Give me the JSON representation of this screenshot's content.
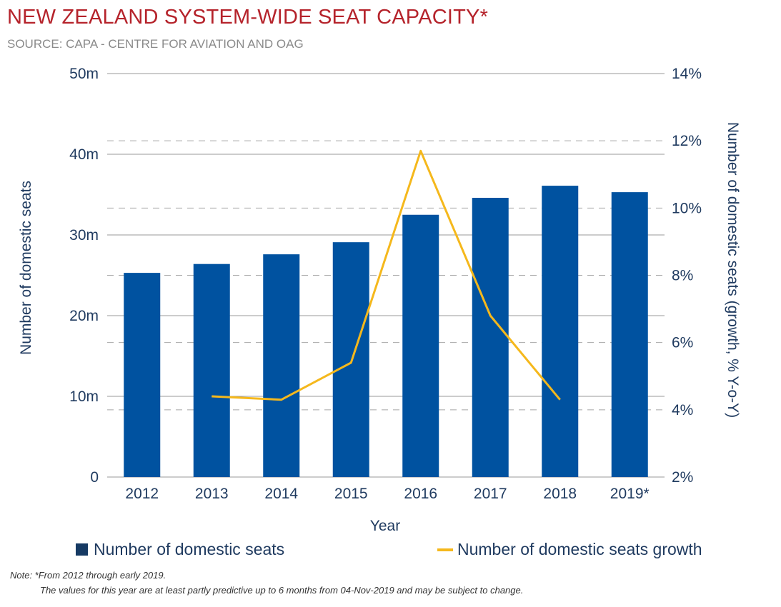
{
  "title": "NEW ZEALAND SYSTEM-WIDE SEAT CAPACITY*",
  "subtitle": "SOURCE: CAPA - CENTRE FOR AVIATION AND OAG",
  "colors": {
    "bar": "#0052a0",
    "line": "#f5b81c",
    "title": "#b5232b",
    "axis_text": "#1f3a5f"
  },
  "chart_data": {
    "type": "bar",
    "categories": [
      "2012",
      "2013",
      "2014",
      "2015",
      "2016",
      "2017",
      "2018",
      "2019*"
    ],
    "xlabel": "Year",
    "ylabel": "Number of domestic seats",
    "y2label": "Number of domestic seats (growth, % Y-o-Y)",
    "ylim": [
      0,
      50
    ],
    "y2lim": [
      2,
      14
    ],
    "yticks": [
      "0",
      "10m",
      "20m",
      "30m",
      "40m",
      "50m"
    ],
    "y2ticks": [
      "2%",
      "4%",
      "6%",
      "8%",
      "10%",
      "12%",
      "14%"
    ],
    "series": [
      {
        "name": "Number of domestic seats",
        "type": "bar",
        "axis": "left",
        "values": [
          25.3,
          26.4,
          27.6,
          29.1,
          32.5,
          34.6,
          36.1,
          35.3
        ]
      },
      {
        "name": "Number of domestic seats growth",
        "type": "line",
        "axis": "right",
        "values": [
          null,
          4.4,
          4.3,
          5.4,
          11.7,
          6.8,
          4.3,
          null
        ]
      }
    ],
    "grid": true,
    "legend": "bottom"
  },
  "legend": {
    "bar_label": "Number of domestic seats",
    "line_label": "Number of domestic seats growth"
  },
  "notes": {
    "line1": "Note: *From 2012 through early 2019.",
    "line2": "The values for this year are at least partly predictive up to 6 months from 04-Nov-2019 and may be subject to change."
  }
}
